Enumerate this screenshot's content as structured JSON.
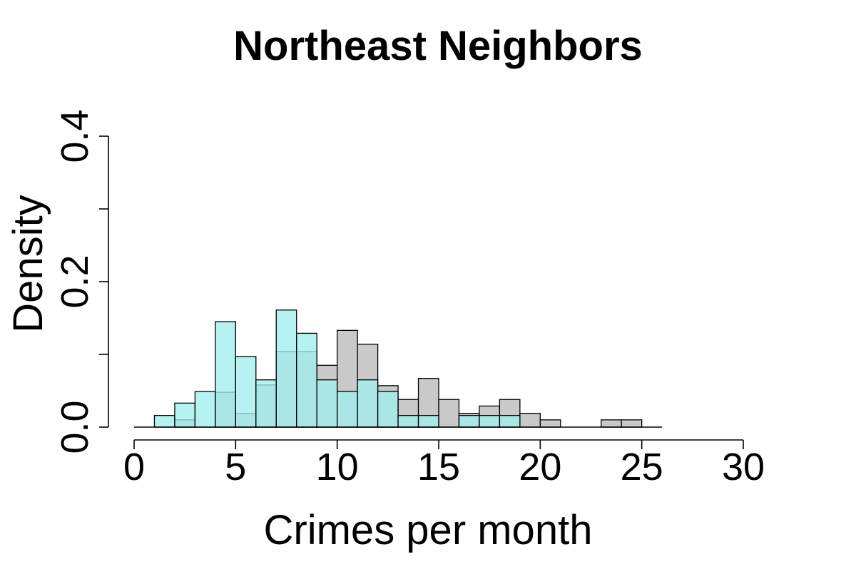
{
  "chart_data": {
    "type": "bar",
    "title": "Northeast Neighbors",
    "xlabel": "Crimes per month",
    "ylabel": "Density",
    "xlim": [
      0,
      30
    ],
    "ylim": [
      0,
      0.4
    ],
    "x_ticks": [
      "0",
      "5",
      "10",
      "15",
      "20",
      "25",
      "30"
    ],
    "y_ticks": [
      "0.0",
      "0.2",
      "0.4"
    ],
    "y_minor_ticks": [
      0.1,
      0.3
    ],
    "bin_width": 1,
    "grid": false,
    "legend": "none",
    "baseline_range": [
      0,
      26
    ],
    "series": [
      {
        "fill": "#c9c9c9",
        "bins": [
          {
            "x0": 2,
            "x1": 3,
            "density": 0.01
          },
          {
            "x0": 4,
            "x1": 5,
            "density": 0.048
          },
          {
            "x0": 5,
            "x1": 6,
            "density": 0.019
          },
          {
            "x0": 6,
            "x1": 7,
            "density": 0.058
          },
          {
            "x0": 7,
            "x1": 8,
            "density": 0.104
          },
          {
            "x0": 8,
            "x1": 9,
            "density": 0.104
          },
          {
            "x0": 9,
            "x1": 10,
            "density": 0.085
          },
          {
            "x0": 10,
            "x1": 11,
            "density": 0.133
          },
          {
            "x0": 11,
            "x1": 12,
            "density": 0.114
          },
          {
            "x0": 12,
            "x1": 13,
            "density": 0.057
          },
          {
            "x0": 13,
            "x1": 14,
            "density": 0.038
          },
          {
            "x0": 14,
            "x1": 15,
            "density": 0.067
          },
          {
            "x0": 15,
            "x1": 16,
            "density": 0.038
          },
          {
            "x0": 16,
            "x1": 17,
            "density": 0.019
          },
          {
            "x0": 17,
            "x1": 18,
            "density": 0.029
          },
          {
            "x0": 18,
            "x1": 19,
            "density": 0.038
          },
          {
            "x0": 19,
            "x1": 20,
            "density": 0.019
          },
          {
            "x0": 20,
            "x1": 21,
            "density": 0.01
          },
          {
            "x0": 23,
            "x1": 24,
            "density": 0.01
          },
          {
            "x0": 24,
            "x1": 25,
            "density": 0.01
          }
        ]
      },
      {
        "fill": "#a0eeec",
        "opacity": 0.78,
        "bins": [
          {
            "x0": 1,
            "x1": 2,
            "density": 0.016
          },
          {
            "x0": 2,
            "x1": 3,
            "density": 0.033
          },
          {
            "x0": 3,
            "x1": 4,
            "density": 0.049
          },
          {
            "x0": 4,
            "x1": 5,
            "density": 0.145
          },
          {
            "x0": 5,
            "x1": 6,
            "density": 0.097
          },
          {
            "x0": 6,
            "x1": 7,
            "density": 0.065
          },
          {
            "x0": 7,
            "x1": 8,
            "density": 0.161
          },
          {
            "x0": 8,
            "x1": 9,
            "density": 0.129
          },
          {
            "x0": 9,
            "x1": 10,
            "density": 0.065
          },
          {
            "x0": 10,
            "x1": 11,
            "density": 0.049
          },
          {
            "x0": 11,
            "x1": 12,
            "density": 0.065
          },
          {
            "x0": 12,
            "x1": 13,
            "density": 0.049
          },
          {
            "x0": 13,
            "x1": 14,
            "density": 0.016
          },
          {
            "x0": 14,
            "x1": 15,
            "density": 0.016
          },
          {
            "x0": 16,
            "x1": 17,
            "density": 0.016
          },
          {
            "x0": 17,
            "x1": 18,
            "density": 0.016
          },
          {
            "x0": 18,
            "x1": 19,
            "density": 0.016
          }
        ]
      }
    ]
  }
}
